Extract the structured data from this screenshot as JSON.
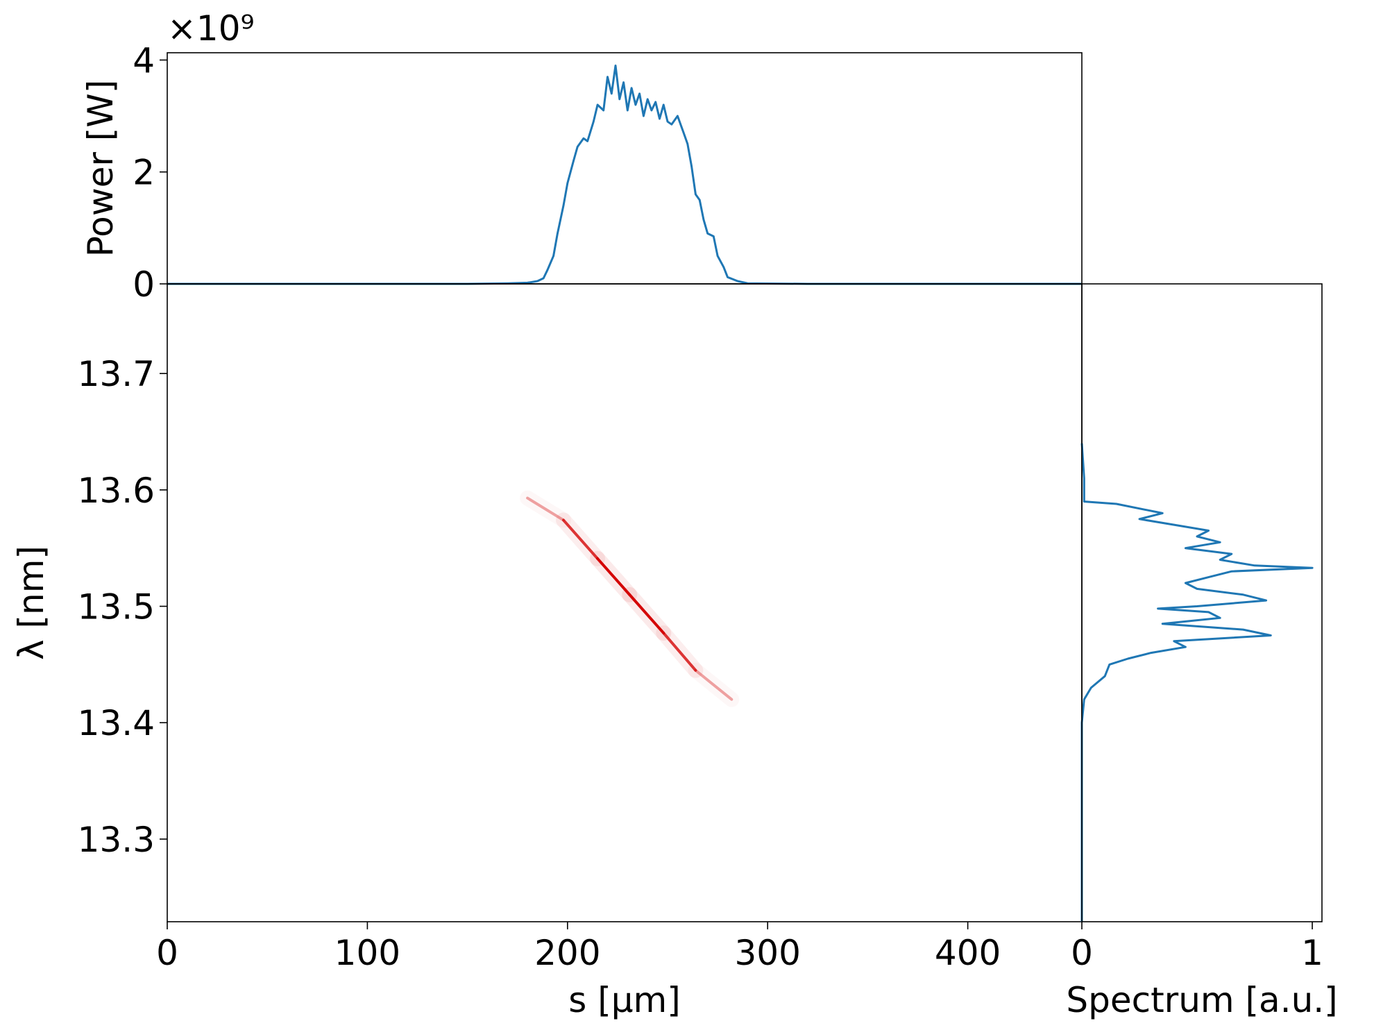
{
  "chart_data": [
    {
      "type": "line",
      "y_label": "Power [W]",
      "y_offset_label": "×10⁹",
      "color": "#1f77b4",
      "xlim": [
        0,
        457
      ],
      "ylim": [
        0,
        4.13
      ],
      "yticks": [
        0,
        2,
        4
      ],
      "x": [
        0,
        150,
        170,
        180,
        185,
        188,
        190,
        193,
        195,
        198,
        200,
        203,
        205,
        208,
        210,
        213,
        215,
        218,
        220,
        222,
        224,
        226,
        228,
        230,
        232,
        234,
        236,
        238,
        240,
        242,
        244,
        246,
        248,
        250,
        252,
        255,
        258,
        260,
        262,
        264,
        266,
        268,
        270,
        273,
        275,
        278,
        280,
        285,
        290,
        320,
        457
      ],
      "values": [
        0,
        0,
        0.01,
        0.02,
        0.05,
        0.1,
        0.25,
        0.5,
        0.9,
        1.4,
        1.8,
        2.2,
        2.45,
        2.6,
        2.55,
        2.9,
        3.2,
        3.1,
        3.7,
        3.4,
        3.9,
        3.3,
        3.6,
        3.1,
        3.5,
        3.2,
        3.4,
        3.0,
        3.3,
        3.1,
        3.25,
        2.95,
        3.2,
        2.9,
        2.85,
        3.0,
        2.7,
        2.5,
        2.1,
        1.6,
        1.5,
        1.15,
        0.9,
        0.85,
        0.5,
        0.3,
        0.12,
        0.05,
        0.01,
        0,
        0
      ]
    },
    {
      "type": "heatmap",
      "x_label": "s [μm]",
      "y_label": "λ [nm]",
      "color": "#d40000",
      "xlim": [
        0,
        457
      ],
      "ylim": [
        13.229,
        13.777
      ],
      "xticks": [
        0,
        100,
        200,
        300,
        400
      ],
      "yticks": [
        13.3,
        13.4,
        13.5,
        13.6,
        13.7
      ],
      "ridge": {
        "s": [
          180,
          198,
          215,
          231,
          248,
          264,
          282
        ],
        "wavelength": [
          13.593,
          13.574,
          13.541,
          13.51,
          13.477,
          13.445,
          13.42
        ],
        "intensity": [
          0.1,
          0.6,
          0.95,
          1,
          0.95,
          0.6,
          0.1
        ]
      }
    },
    {
      "type": "line",
      "value_axis": "x",
      "x_label": "Spectrum [a.u.]",
      "color": "#1f77b4",
      "xlim": [
        0,
        1.042
      ],
      "ylim": [
        13.229,
        13.777
      ],
      "xticks": [
        0,
        1
      ],
      "wavelengths": [
        13.64,
        13.61,
        13.59,
        13.588,
        13.58,
        13.575,
        13.57,
        13.565,
        13.56,
        13.555,
        13.55,
        13.545,
        13.54,
        13.535,
        13.533,
        13.53,
        13.525,
        13.52,
        13.515,
        13.51,
        13.505,
        13.5,
        13.498,
        13.495,
        13.49,
        13.485,
        13.48,
        13.475,
        13.47,
        13.465,
        13.46,
        13.455,
        13.45,
        13.44,
        13.43,
        13.42,
        13.4,
        13.35,
        13.229
      ],
      "values": [
        0,
        0.01,
        0.01,
        0.15,
        0.35,
        0.25,
        0.4,
        0.55,
        0.5,
        0.6,
        0.45,
        0.65,
        0.6,
        0.75,
        1,
        0.65,
        0.55,
        0.45,
        0.5,
        0.7,
        0.8,
        0.5,
        0.33,
        0.55,
        0.6,
        0.35,
        0.7,
        0.82,
        0.4,
        0.45,
        0.3,
        0.2,
        0.12,
        0.1,
        0.04,
        0.01,
        0,
        0,
        0
      ]
    }
  ]
}
